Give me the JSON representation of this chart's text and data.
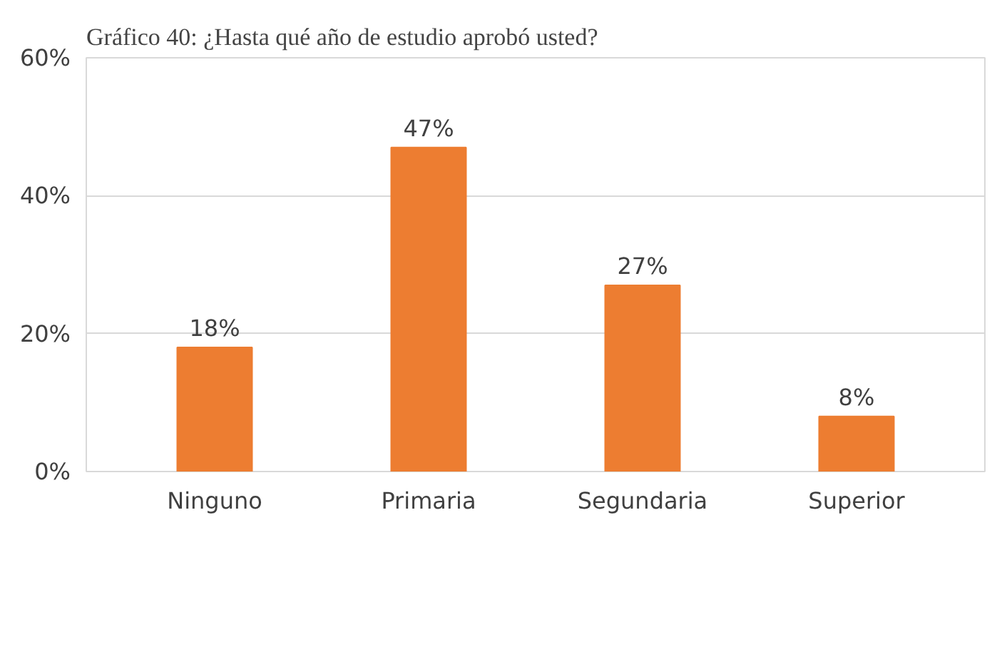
{
  "chart_data": {
    "type": "bar",
    "title": "Gráfico 40: ¿Hasta qué año de estudio aprobó usted?",
    "categories": [
      "Ninguno",
      "Primaria",
      "Segundaria",
      "Superior"
    ],
    "values": [
      18,
      47,
      27,
      8
    ],
    "color": "#ed7d31",
    "data_labels": true,
    "value_labels": [
      "18%",
      "47%",
      "27%",
      "8%"
    ],
    "ylim": [
      0,
      60
    ],
    "yticks": [
      {
        "value": 0,
        "label": "0%"
      },
      {
        "value": 20,
        "label": "20%"
      },
      {
        "value": 40,
        "label": "40%"
      },
      {
        "value": 60,
        "label": "60%"
      }
    ],
    "grid": "y"
  }
}
